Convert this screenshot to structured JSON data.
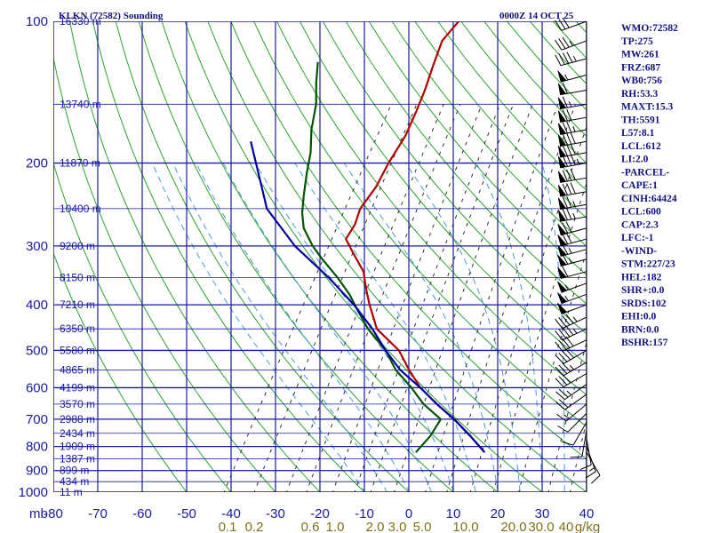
{
  "title": "KLKN (72582) Sounding",
  "date_label": "0000Z 14 OCT 25",
  "stats": [
    "WMO:72582",
    "TP:275",
    "MW:261",
    "FRZ:687",
    "WB0:756",
    "RH:53.3",
    "MAXT:15.3",
    "TH:5591",
    "L57:8.1",
    "LCL:612",
    "LI:2.0",
    "-PARCEL-",
    "CAPE:1",
    "CINH:64424",
    "LCL:600",
    "CAP:2.3",
    "LFC:-1",
    "-WIND-",
    "STM:227/23",
    "HEL:182",
    "SHR+:0.0",
    "SRDS:102",
    "EHI:0.0",
    "BRN:0.0",
    "BSHR:157"
  ],
  "chart_data": {
    "type": "line",
    "xlabel": "",
    "ylabel": "mb",
    "xlim": [
      -80,
      40
    ],
    "ylim": [
      1000,
      100
    ],
    "y_scale": "log",
    "x_ticks": [
      -80,
      -70,
      -60,
      -50,
      -40,
      -30,
      -20,
      -10,
      0,
      10,
      20,
      30,
      40
    ],
    "x_tick_labels": [
      "-80",
      "-70",
      "-60",
      "-50",
      "-40",
      "-30",
      "-20",
      "-10",
      "0",
      "10",
      "20",
      "30",
      "40"
    ],
    "y_ticks": [
      100,
      200,
      300,
      400,
      500,
      600,
      700,
      800,
      900,
      1000
    ],
    "y_tick_labels": [
      "100",
      "200",
      "300",
      "400",
      "500",
      "600",
      "700",
      "800",
      "900",
      "1000"
    ],
    "height_labels": [
      {
        "p": 100,
        "label": "16330 m"
      },
      {
        "p": 150,
        "label": "13740 m"
      },
      {
        "p": 200,
        "label": "11870 m"
      },
      {
        "p": 250,
        "label": "10400 m"
      },
      {
        "p": 300,
        "label": "9200 m"
      },
      {
        "p": 350,
        "label": "8150 m"
      },
      {
        "p": 400,
        "label": "7210 m"
      },
      {
        "p": 450,
        "label": "6350 m"
      },
      {
        "p": 500,
        "label": "5580 m"
      },
      {
        "p": 550,
        "label": "4865 m"
      },
      {
        "p": 600,
        "label": "4199 m"
      },
      {
        "p": 650,
        "label": "3570 m"
      },
      {
        "p": 700,
        "label": "2988 m"
      },
      {
        "p": 750,
        "label": "2434 m"
      },
      {
        "p": 800,
        "label": "1909 m"
      },
      {
        "p": 850,
        "label": "1387 m"
      },
      {
        "p": 900,
        "label": "899 m"
      },
      {
        "p": 950,
        "label": "434 m"
      },
      {
        "p": 1000,
        "label": "11 m"
      }
    ],
    "mixing_ratio_labels": [
      "0.1",
      "0.2",
      "0.6",
      "1.0",
      "2.0",
      "3.0",
      "5.0",
      "10.0",
      "20.0",
      "30.0",
      "40",
      "g/kg"
    ],
    "series": [
      {
        "kind": "temperature",
        "color": "#b00000",
        "points": [
          [
            -54.5,
            100
          ],
          [
            -55.5,
            110
          ],
          [
            -54,
            125
          ],
          [
            -52.5,
            140
          ],
          [
            -51.5,
            155
          ],
          [
            -50.5,
            175
          ],
          [
            -50.5,
            200
          ],
          [
            -50,
            225
          ],
          [
            -50.5,
            250
          ],
          [
            -49.5,
            270
          ],
          [
            -49.5,
            290
          ],
          [
            -46,
            310
          ],
          [
            -41,
            340
          ],
          [
            -38,
            370
          ],
          [
            -35,
            400
          ],
          [
            -30,
            450
          ],
          [
            -22,
            500
          ],
          [
            -17,
            550
          ],
          [
            -12,
            600
          ],
          [
            -6,
            650
          ],
          [
            0,
            700
          ],
          [
            6,
            760
          ],
          [
            11.5,
            823
          ]
        ]
      },
      {
        "kind": "dewpoint",
        "color": "#005500",
        "points": [
          [
            -80.5,
            122
          ],
          [
            -78,
            135
          ],
          [
            -75,
            150
          ],
          [
            -72.5,
            170
          ],
          [
            -69.5,
            190
          ],
          [
            -67.5,
            210
          ],
          [
            -65,
            235
          ],
          [
            -63,
            255
          ],
          [
            -60.5,
            275
          ],
          [
            -56,
            300
          ],
          [
            -52,
            320
          ],
          [
            -46,
            350
          ],
          [
            -41,
            380
          ],
          [
            -37,
            410
          ],
          [
            -32,
            450
          ],
          [
            -25,
            500
          ],
          [
            -20,
            550
          ],
          [
            -14,
            600
          ],
          [
            -9,
            650
          ],
          [
            -3,
            700
          ],
          [
            -3,
            760
          ],
          [
            -4,
            823
          ]
        ]
      },
      {
        "kind": "parcel",
        "color": "#0000a0",
        "points": [
          [
            -84.5,
            180
          ],
          [
            -71.5,
            250
          ],
          [
            -60,
            300
          ],
          [
            -48,
            350
          ],
          [
            -38.5,
            400
          ],
          [
            -31,
            450
          ],
          [
            -25,
            500
          ],
          [
            -19,
            550
          ],
          [
            -12,
            600
          ],
          [
            -6,
            650
          ],
          [
            0,
            700
          ],
          [
            6,
            760
          ],
          [
            11.5,
            823
          ]
        ]
      }
    ],
    "wind_barbs": [
      {
        "p": 100,
        "dir": 250,
        "kt": 30
      },
      {
        "p": 110,
        "dir": 250,
        "kt": 35
      },
      {
        "p": 120,
        "dir": 255,
        "kt": 45
      },
      {
        "p": 130,
        "dir": 255,
        "kt": 55
      },
      {
        "p": 140,
        "dir": 260,
        "kt": 60
      },
      {
        "p": 150,
        "dir": 260,
        "kt": 65
      },
      {
        "p": 160,
        "dir": 260,
        "kt": 70
      },
      {
        "p": 170,
        "dir": 260,
        "kt": 75
      },
      {
        "p": 180,
        "dir": 260,
        "kt": 80
      },
      {
        "p": 190,
        "dir": 260,
        "kt": 80
      },
      {
        "p": 200,
        "dir": 260,
        "kt": 85
      },
      {
        "p": 215,
        "dir": 260,
        "kt": 80
      },
      {
        "p": 230,
        "dir": 260,
        "kt": 80
      },
      {
        "p": 245,
        "dir": 260,
        "kt": 75
      },
      {
        "p": 260,
        "dir": 260,
        "kt": 75
      },
      {
        "p": 275,
        "dir": 255,
        "kt": 70
      },
      {
        "p": 290,
        "dir": 255,
        "kt": 70
      },
      {
        "p": 305,
        "dir": 255,
        "kt": 65
      },
      {
        "p": 320,
        "dir": 255,
        "kt": 65
      },
      {
        "p": 340,
        "dir": 255,
        "kt": 60
      },
      {
        "p": 360,
        "dir": 250,
        "kt": 55
      },
      {
        "p": 380,
        "dir": 250,
        "kt": 55
      },
      {
        "p": 400,
        "dir": 250,
        "kt": 50
      },
      {
        "p": 425,
        "dir": 245,
        "kt": 45
      },
      {
        "p": 450,
        "dir": 245,
        "kt": 45
      },
      {
        "p": 475,
        "dir": 245,
        "kt": 40
      },
      {
        "p": 500,
        "dir": 240,
        "kt": 40
      },
      {
        "p": 530,
        "dir": 240,
        "kt": 35
      },
      {
        "p": 560,
        "dir": 240,
        "kt": 30
      },
      {
        "p": 590,
        "dir": 235,
        "kt": 25
      },
      {
        "p": 620,
        "dir": 235,
        "kt": 20
      },
      {
        "p": 650,
        "dir": 230,
        "kt": 15
      },
      {
        "p": 680,
        "dir": 225,
        "kt": 10
      },
      {
        "p": 710,
        "dir": 210,
        "kt": 10
      },
      {
        "p": 740,
        "dir": 190,
        "kt": 10
      },
      {
        "p": 770,
        "dir": 170,
        "kt": 10
      },
      {
        "p": 800,
        "dir": 160,
        "kt": 15
      },
      {
        "p": 823,
        "dir": 150,
        "kt": 10
      }
    ]
  }
}
